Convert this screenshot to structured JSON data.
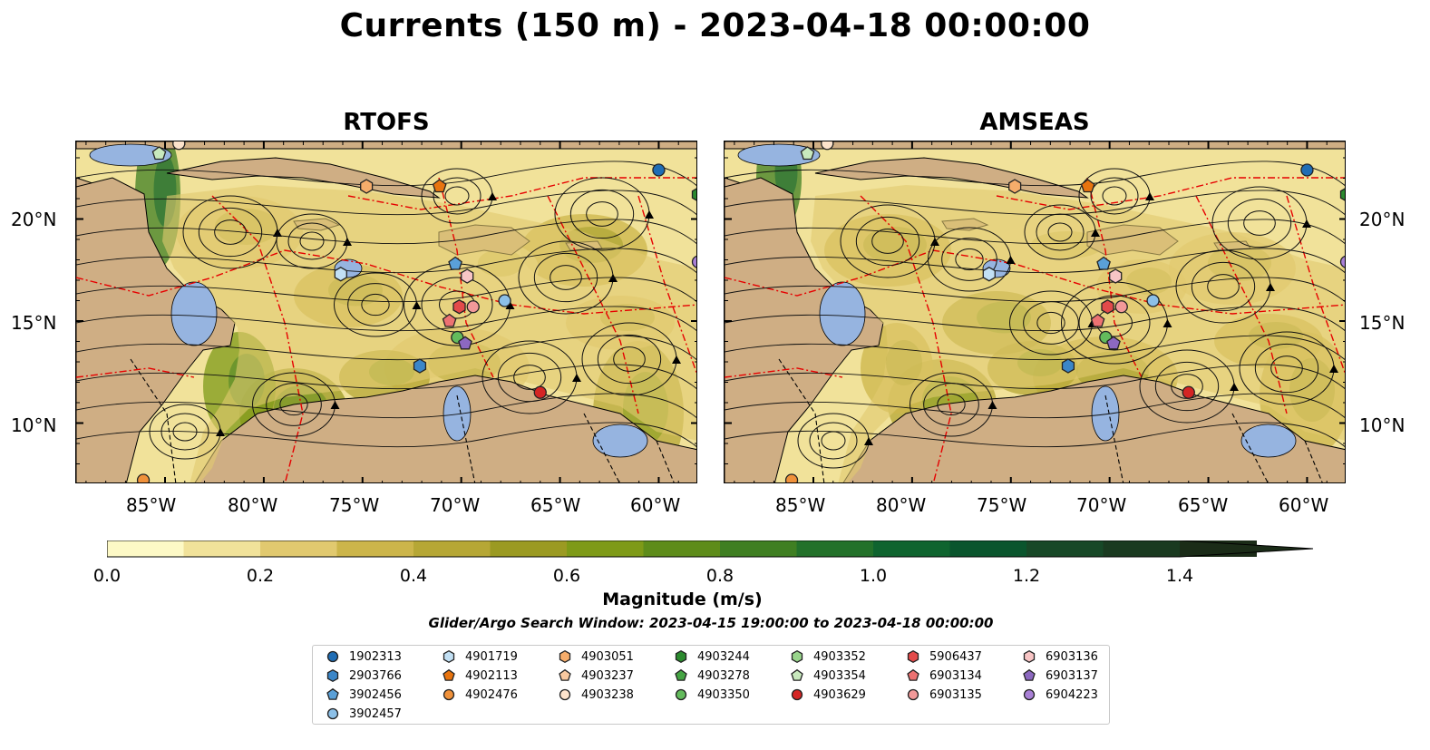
{
  "title": "Currents (150 m) - 2023-04-18 00:00:00",
  "panels": [
    {
      "title": "RTOFS"
    },
    {
      "title": "AMSEAS"
    }
  ],
  "map": {
    "lon_labels": [
      "85°W",
      "80°W",
      "75°W",
      "70°W",
      "65°W",
      "60°W"
    ],
    "lat_labels": [
      "20°N",
      "15°N",
      "10°N"
    ],
    "lon_range": [
      -89.5,
      -58.0
    ],
    "lat_range": [
      7.0,
      23.8
    ],
    "colors": {
      "land": "#cfae84",
      "shallow_water": "#96b4e0",
      "border": "#e60000"
    }
  },
  "colorbar": {
    "label": "Magnitude (m/s)",
    "ticks": [
      "0.0",
      "0.2",
      "0.4",
      "0.6",
      "0.8",
      "1.0",
      "1.2",
      "1.4"
    ],
    "range": [
      0.0,
      1.5
    ],
    "colors": [
      "#fdf9c6",
      "#f1e29a",
      "#e1c96f",
      "#ccb54a",
      "#b6a735",
      "#9b9a22",
      "#7e9a17",
      "#5e8c1a",
      "#3f7f22",
      "#23712a",
      "#0f642f",
      "#0a552d",
      "#174827",
      "#1a3a20",
      "#1b2c18"
    ]
  },
  "search_window": "Glider/Argo Search Window: 2023-04-15 19:00:00 to 2023-04-18 00:00:00",
  "legend": [
    {
      "id": "1902313",
      "marker": "circle",
      "color": "#1f6db5"
    },
    {
      "id": "2903766",
      "marker": "hexagon",
      "color": "#3b86c8"
    },
    {
      "id": "3902456",
      "marker": "pentagon",
      "color": "#5aa0d8"
    },
    {
      "id": "3902457",
      "marker": "circle",
      "color": "#8cc0e8"
    },
    {
      "id": "4901719",
      "marker": "hexagon",
      "color": "#c2e0f4"
    },
    {
      "id": "4902113",
      "marker": "pentagon",
      "color": "#e8740f"
    },
    {
      "id": "4902476",
      "marker": "circle",
      "color": "#f0913a"
    },
    {
      "id": "4903051",
      "marker": "hexagon",
      "color": "#f6ad6b"
    },
    {
      "id": "4903237",
      "marker": "pentagon",
      "color": "#f9c9a0"
    },
    {
      "id": "4903238",
      "marker": "circle",
      "color": "#fde3cc"
    },
    {
      "id": "4903244",
      "marker": "hexagon",
      "color": "#2b8a2e"
    },
    {
      "id": "4903278",
      "marker": "pentagon",
      "color": "#45a443"
    },
    {
      "id": "4903350",
      "marker": "circle",
      "color": "#63bb5c"
    },
    {
      "id": "4903352",
      "marker": "hexagon",
      "color": "#98d48b"
    },
    {
      "id": "4903354",
      "marker": "pentagon",
      "color": "#c8e9bd"
    },
    {
      "id": "4903629",
      "marker": "circle",
      "color": "#d42524"
    },
    {
      "id": "5906437",
      "marker": "hexagon",
      "color": "#e34a4a"
    },
    {
      "id": "6903134",
      "marker": "pentagon",
      "color": "#ec7272"
    },
    {
      "id": "6903135",
      "marker": "circle",
      "color": "#f29999"
    },
    {
      "id": "6903136",
      "marker": "hexagon",
      "color": "#f8c5c5"
    },
    {
      "id": "6903137",
      "marker": "pentagon",
      "color": "#8c68c0"
    },
    {
      "id": "6904223",
      "marker": "circle",
      "color": "#a980d6"
    }
  ],
  "platforms": [
    {
      "lon": -60.0,
      "lat": 22.4,
      "color": "#1f6db5",
      "marker": "circle"
    },
    {
      "lon": -58.0,
      "lat": 21.2,
      "color": "#2b8a2e",
      "marker": "hexagon"
    },
    {
      "lon": -58.0,
      "lat": 17.9,
      "color": "#a980d6",
      "marker": "circle"
    },
    {
      "lon": -74.8,
      "lat": 21.6,
      "color": "#f6ad6b",
      "marker": "hexagon"
    },
    {
      "lon": -71.1,
      "lat": 21.6,
      "color": "#e8740f",
      "marker": "pentagon"
    },
    {
      "lon": -85.3,
      "lat": 23.2,
      "color": "#c8e9bd",
      "marker": "pentagon"
    },
    {
      "lon": -84.3,
      "lat": 23.7,
      "color": "#fde3cc",
      "marker": "circle"
    },
    {
      "lon": -76.1,
      "lat": 17.3,
      "color": "#c2e0f4",
      "marker": "hexagon"
    },
    {
      "lon": -70.3,
      "lat": 17.8,
      "color": "#5aa0d8",
      "marker": "pentagon"
    },
    {
      "lon": -69.7,
      "lat": 17.2,
      "color": "#f8c5c5",
      "marker": "hexagon"
    },
    {
      "lon": -67.8,
      "lat": 16.0,
      "color": "#8cc0e8",
      "marker": "circle"
    },
    {
      "lon": -70.1,
      "lat": 15.7,
      "color": "#e34a4a",
      "marker": "hexagon"
    },
    {
      "lon": -69.4,
      "lat": 15.7,
      "color": "#f29999",
      "marker": "circle"
    },
    {
      "lon": -70.6,
      "lat": 15.0,
      "color": "#ec7272",
      "marker": "pentagon"
    },
    {
      "lon": -70.2,
      "lat": 14.2,
      "color": "#63bb5c",
      "marker": "circle"
    },
    {
      "lon": -69.8,
      "lat": 13.9,
      "color": "#8c68c0",
      "marker": "pentagon"
    },
    {
      "lon": -72.1,
      "lat": 12.8,
      "color": "#3b86c8",
      "marker": "hexagon"
    },
    {
      "lon": -66.0,
      "lat": 11.5,
      "color": "#d42524",
      "marker": "circle"
    },
    {
      "lon": -86.1,
      "lat": 7.2,
      "color": "#f0913a",
      "marker": "circle"
    }
  ]
}
